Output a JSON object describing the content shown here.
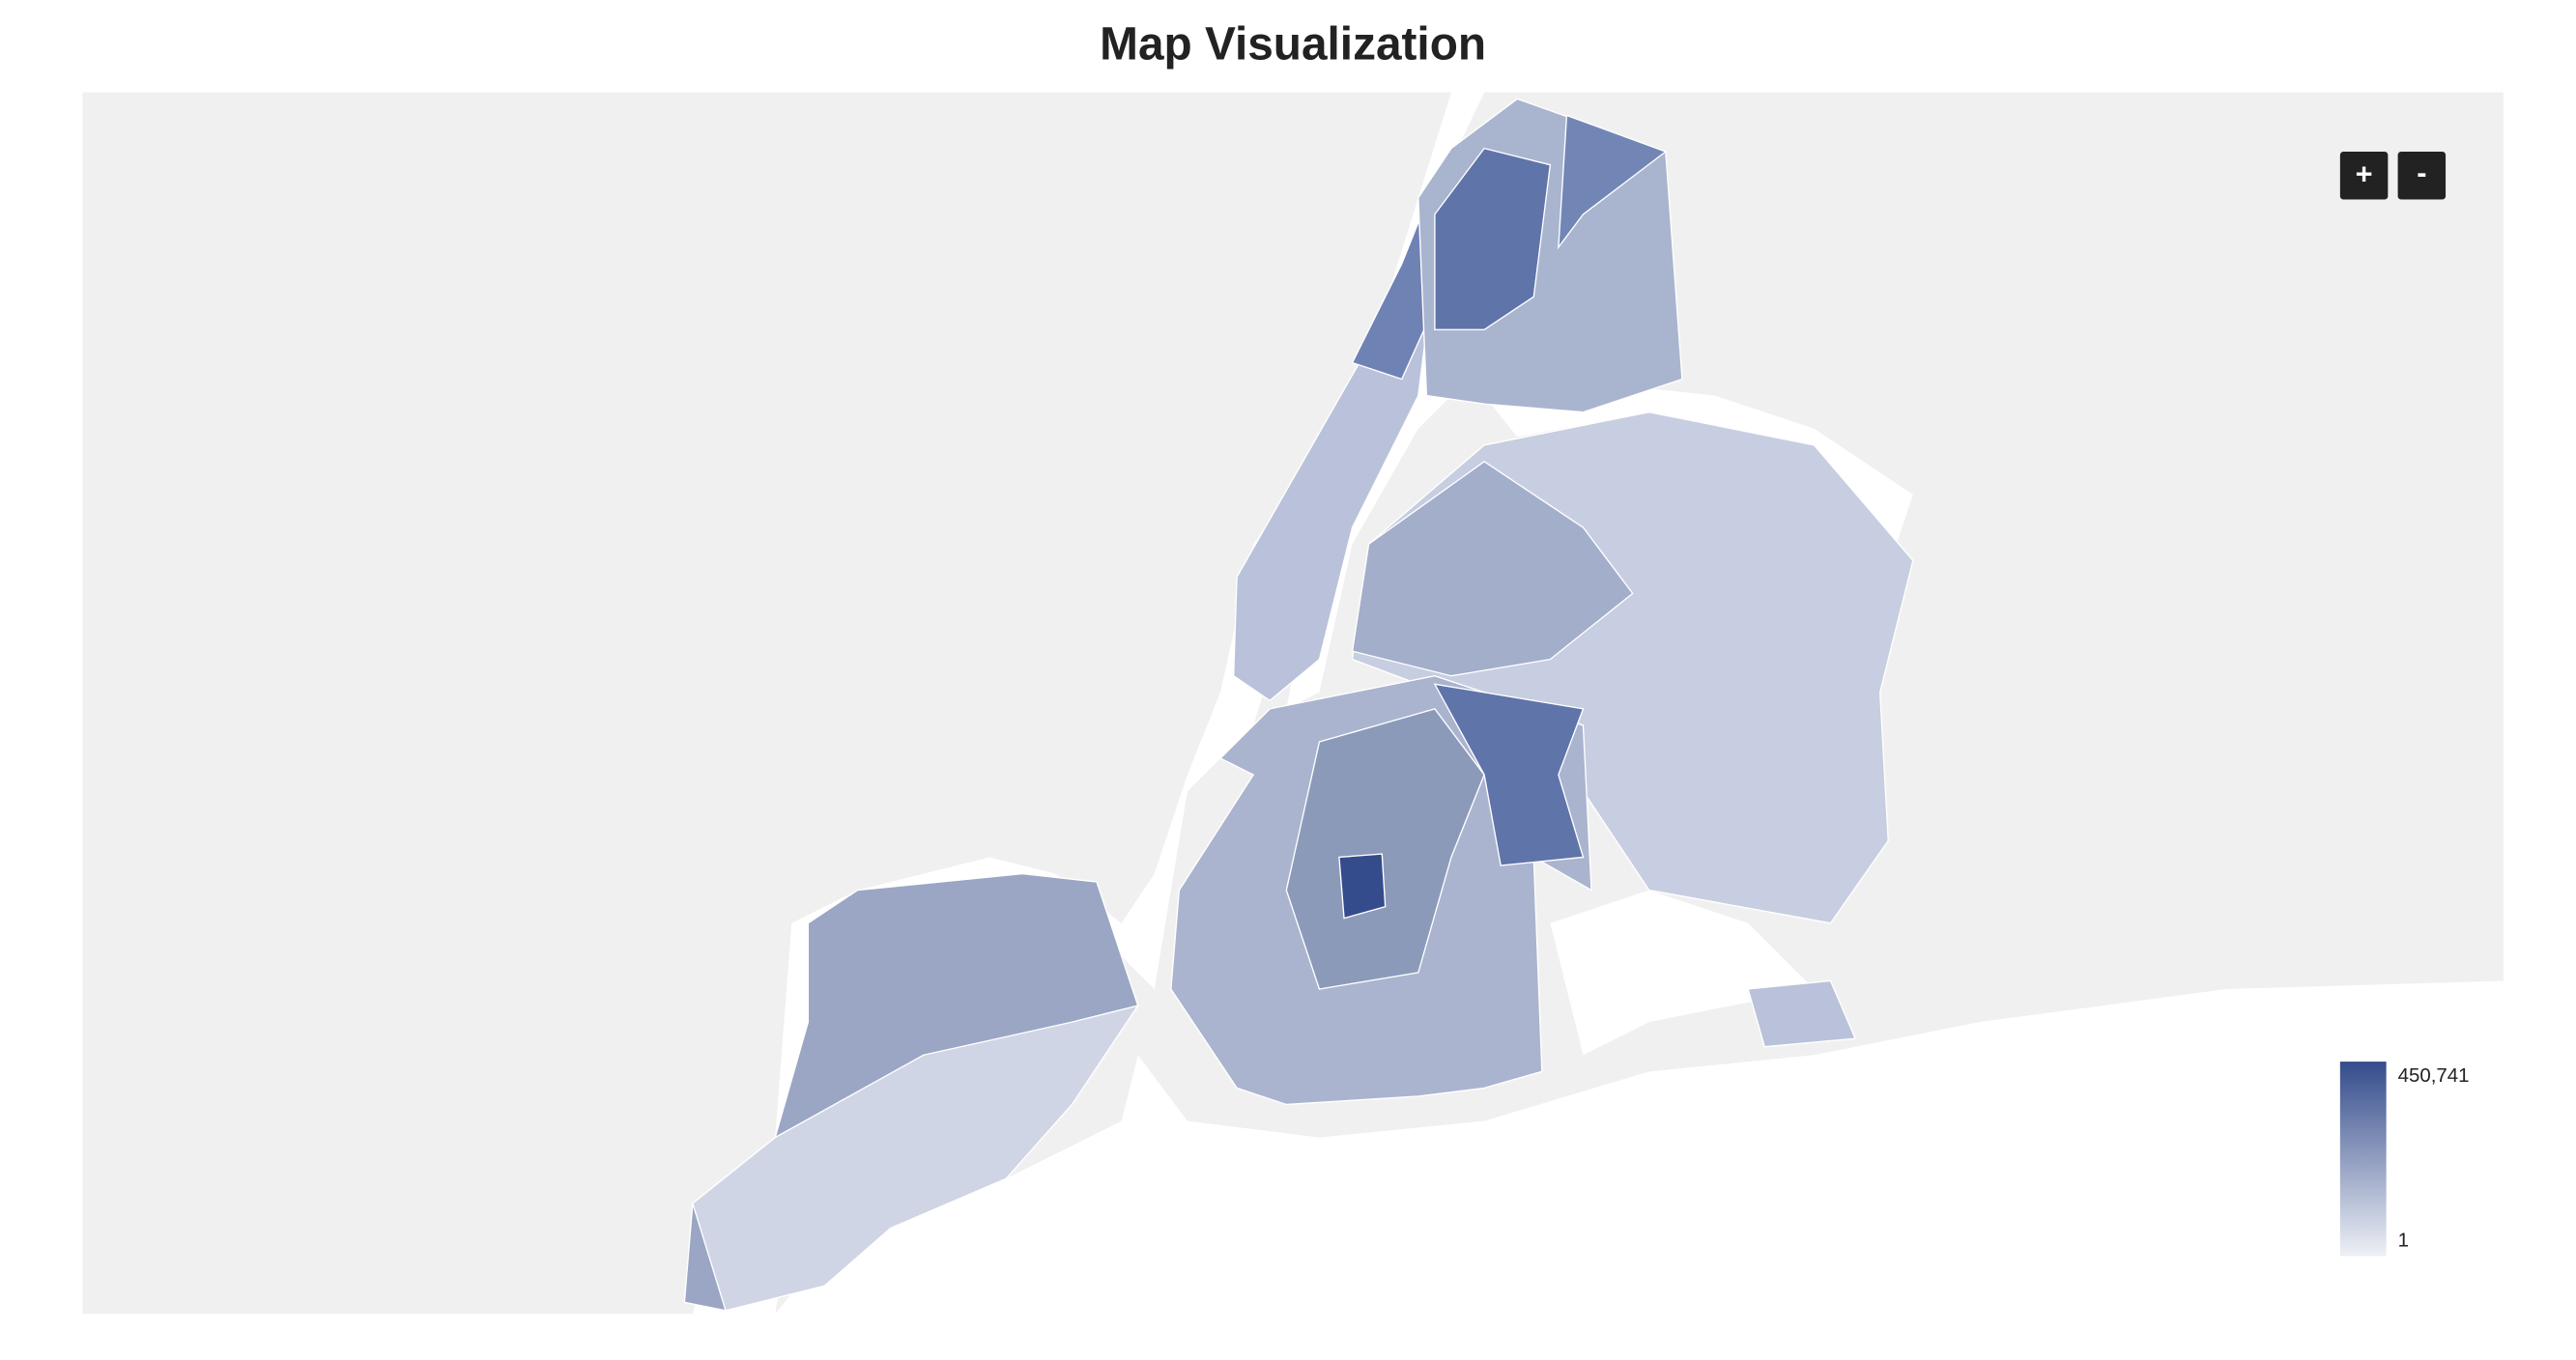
{
  "title": "Map Visualization",
  "controls": {
    "zoom_in": "+",
    "zoom_out": "-"
  },
  "legend": {
    "max": {
      "value": 450741,
      "label": "450,741"
    },
    "min": 1
  }
}
